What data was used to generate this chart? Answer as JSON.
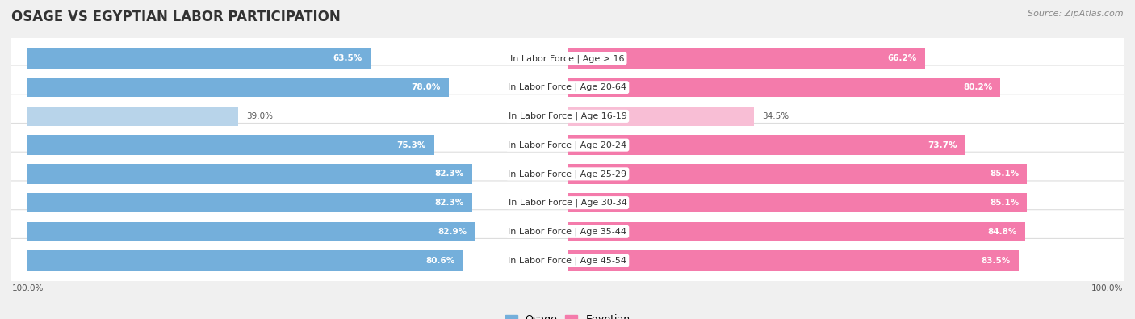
{
  "title": "OSAGE VS EGYPTIAN LABOR PARTICIPATION",
  "source": "Source: ZipAtlas.com",
  "categories": [
    "In Labor Force | Age > 16",
    "In Labor Force | Age 20-64",
    "In Labor Force | Age 16-19",
    "In Labor Force | Age 20-24",
    "In Labor Force | Age 25-29",
    "In Labor Force | Age 30-34",
    "In Labor Force | Age 35-44",
    "In Labor Force | Age 45-54"
  ],
  "osage_values": [
    63.5,
    78.0,
    39.0,
    75.3,
    82.3,
    82.3,
    82.9,
    80.6
  ],
  "egyptian_values": [
    66.2,
    80.2,
    34.5,
    73.7,
    85.1,
    85.1,
    84.8,
    83.5
  ],
  "osage_color": "#74AFDB",
  "osage_color_light": "#B8D4EA",
  "egyptian_color": "#F47BAB",
  "egyptian_color_light": "#F8BED5",
  "bg_color": "#F0F0F0",
  "row_bg_color": "#FFFFFF",
  "row_border_color": "#DDDDDD",
  "max_value": 100.0,
  "title_fontsize": 12,
  "label_fontsize": 8,
  "value_fontsize": 7.5,
  "legend_fontsize": 9,
  "source_fontsize": 8,
  "threshold": 50
}
